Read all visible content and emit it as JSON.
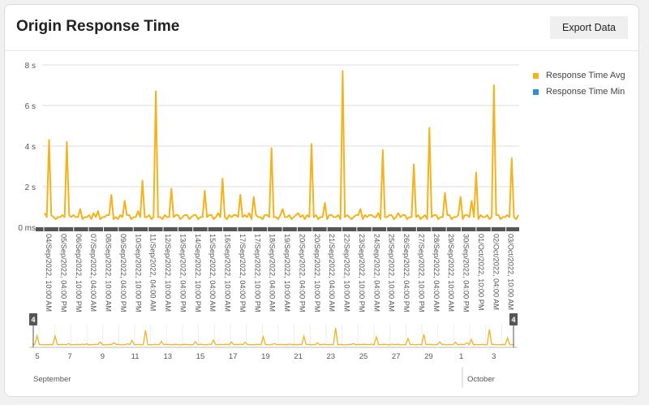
{
  "header": {
    "title": "Origin Response Time",
    "export_label": "Export Data"
  },
  "legend": [
    {
      "label": "Response Time Avg",
      "color": "#f5b21a"
    },
    {
      "label": "Response Time Min",
      "color": "#2d8fd5"
    }
  ],
  "colors": {
    "avg": "#f5b21a",
    "min": "#2d8fd5",
    "grid": "#dddddd"
  },
  "chart_data": {
    "type": "line",
    "y_unit": "s",
    "ylim": [
      0,
      8
    ],
    "y_ticks": [
      "0 ms",
      "2 s",
      "4 s",
      "6 s",
      "8 s"
    ],
    "grid": true,
    "legend_position": "right",
    "x_tick_labels": [
      "04/Sep/2022, 10:00 AM",
      "05/Sep/2022, 04:00 PM",
      "06/Sep/2022, 10:00 PM",
      "07/Sep/2022, 04:00 AM",
      "08/Sep/2022, 10:00 AM",
      "09/Sep/2022, 04:00 PM",
      "10/Sep/2022, 10:00 PM",
      "11/Sep/2022, 04:00 AM",
      "12/Sep/2022, 10:00 AM",
      "13/Sep/2022, 04:00 PM",
      "14/Sep/2022, 10:00 PM",
      "15/Sep/2022, 04:00 AM",
      "16/Sep/2022, 10:00 AM",
      "17/Sep/2022, 04:00 PM",
      "17/Sep/2022, 10:00 PM",
      "18/Sep/2022, 04:00 AM",
      "19/Sep/2022, 10:00 AM",
      "20/Sep/2022, 04:00 PM",
      "20/Sep/2022, 10:00 PM",
      "21/Sep/2022, 04:00 AM",
      "22/Sep/2022, 10:00 AM",
      "23/Sep/2022, 10:00 PM",
      "24/Sep/2022, 04:00 AM",
      "25/Sep/2022, 10:00 AM",
      "26/Sep/2022, 04:00 PM",
      "27/Sep/2022, 10:00 PM",
      "28/Sep/2022, 04:00 AM",
      "29/Sep/2022, 10:00 AM",
      "30/Sep/2022, 04:00 PM",
      "01/Oct/2022, 10:00 PM",
      "02/Oct/2022, 04:00 AM",
      "03/Oct/2022, 10:00 AM"
    ],
    "series": [
      {
        "name": "Response Time Avg",
        "x_range": [
          "04/Sep/2022, 10:00 AM",
          "03/Oct/2022, 10:00 AM"
        ],
        "y": [
          0.7,
          0.5,
          4.3,
          0.6,
          0.5,
          0.4,
          0.5,
          0.5,
          0.6,
          0.5,
          4.2,
          0.6,
          0.5,
          0.6,
          0.5,
          0.5,
          0.9,
          0.4,
          0.5,
          0.5,
          0.6,
          0.4,
          0.7,
          0.5,
          0.8,
          0.4,
          0.5,
          0.5,
          0.6,
          0.6,
          1.6,
          0.4,
          0.5,
          0.4,
          0.6,
          0.5,
          1.3,
          0.6,
          0.6,
          0.4,
          0.5,
          0.5,
          0.8,
          0.5,
          2.3,
          0.5,
          0.5,
          0.6,
          0.4,
          0.5,
          6.7,
          0.5,
          0.5,
          0.4,
          0.6,
          0.5,
          0.5,
          1.9,
          0.5,
          0.6,
          0.6,
          0.4,
          0.5,
          0.6,
          0.6,
          0.4,
          0.5,
          0.6,
          0.6,
          0.4,
          0.5,
          0.5,
          1.8,
          0.5,
          0.6,
          0.6,
          0.4,
          0.5,
          0.7,
          0.5,
          2.4,
          0.5,
          0.4,
          0.6,
          0.5,
          0.6,
          0.6,
          0.5,
          1.6,
          0.5,
          0.6,
          0.5,
          0.7,
          0.4,
          1.5,
          0.6,
          0.5,
          0.5,
          0.4,
          0.6,
          0.6,
          0.5,
          3.9,
          0.5,
          0.5,
          0.4,
          0.6,
          0.9,
          0.5,
          0.5,
          0.6,
          0.4,
          0.5,
          0.6,
          0.7,
          0.5,
          0.6,
          0.4,
          0.6,
          0.5,
          4.1,
          0.5,
          0.6,
          0.4,
          0.5,
          0.5,
          1.2,
          0.4,
          0.6,
          0.6,
          0.5,
          0.5,
          0.6,
          0.4,
          7.7,
          0.5,
          0.6,
          0.5,
          0.4,
          0.5,
          0.6,
          0.6,
          0.9,
          0.4,
          0.6,
          0.5,
          0.6,
          0.6,
          0.5,
          0.5,
          0.7,
          0.4,
          3.8,
          0.5,
          0.5,
          0.6,
          0.6,
          0.4,
          0.5,
          0.7,
          0.5,
          0.6,
          0.6,
          0.4,
          0.5,
          0.5,
          3.1,
          0.5,
          0.6,
          0.4,
          0.5,
          0.6,
          0.4,
          4.9,
          0.5,
          0.6,
          0.6,
          0.4,
          0.5,
          0.5,
          1.7,
          0.6,
          0.6,
          0.4,
          0.5,
          0.5,
          0.6,
          1.5,
          0.4,
          0.6,
          0.6,
          0.5,
          1.3,
          0.5,
          2.7,
          0.4,
          0.6,
          0.5,
          0.5,
          0.6,
          0.4,
          0.5,
          7.0,
          0.6,
          0.6,
          0.4,
          0.5,
          0.5,
          0.6,
          0.5,
          3.4,
          0.5,
          0.4,
          0.6
        ]
      },
      {
        "name": "Response Time Min",
        "x_range": [
          "04/Sep/2022, 10:00 AM",
          "03/Oct/2022, 10:00 AM"
        ],
        "y": []
      }
    ]
  },
  "navigator": {
    "handle_left_label": "4",
    "handle_right_label": "4",
    "day_labels": [
      "5",
      "7",
      "9",
      "11",
      "13",
      "15",
      "17",
      "19",
      "21",
      "23",
      "25",
      "27",
      "29",
      "1",
      "3"
    ],
    "month_labels": [
      "September",
      "October"
    ]
  }
}
